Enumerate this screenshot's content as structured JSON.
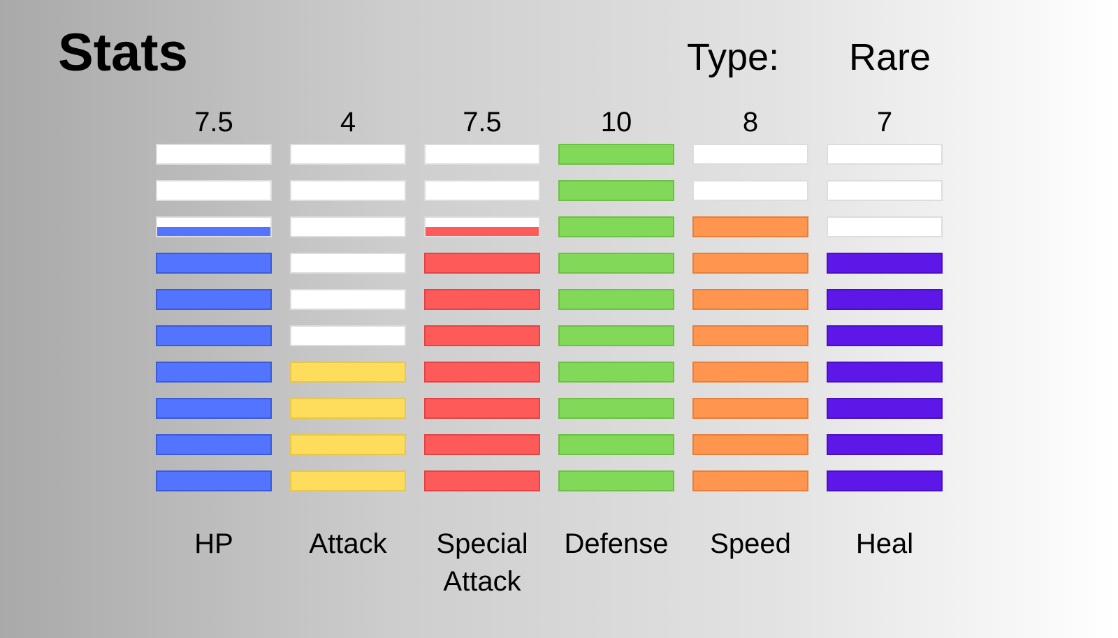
{
  "title": "Stats",
  "type_label": "Type:",
  "type_value": "Rare",
  "max_level": 10,
  "stats": [
    {
      "label": "HP",
      "value": "7.5",
      "level": 7.5,
      "color": "#5274ff",
      "border": "#3b5bd6"
    },
    {
      "label": "Attack",
      "value": "4",
      "level": 4,
      "color": "#ffdd5c",
      "border": "#e8c64a"
    },
    {
      "label": "Special Attack",
      "value": "7.5",
      "level": 7.5,
      "color": "#ff5a5a",
      "border": "#e04545"
    },
    {
      "label": "Defense",
      "value": "10",
      "level": 10,
      "color": "#82d858",
      "border": "#6cc043"
    },
    {
      "label": "Speed",
      "value": "8",
      "level": 8,
      "color": "#ff954f",
      "border": "#e67f3a"
    },
    {
      "label": "Heal",
      "value": "7",
      "level": 7,
      "color": "#5d17e8",
      "border": "#4710c4"
    }
  ]
}
